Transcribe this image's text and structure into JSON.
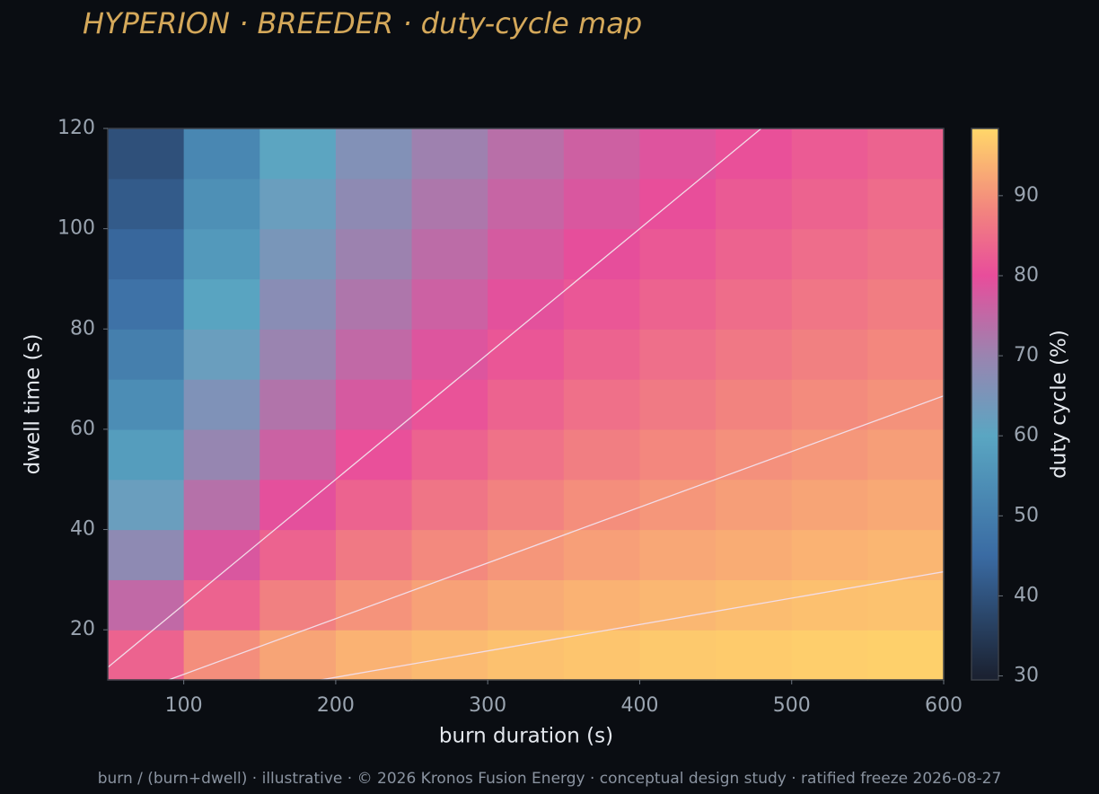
{
  "chart_data": {
    "type": "heatmap",
    "title": "HYPERION · BREEDER  ·  duty-cycle map",
    "x_label": "burn duration (s)",
    "y_label": "dwell time (s)",
    "colorbar_label": "duty cycle (%)",
    "footer": "burn / (burn+dwell) · illustrative · © 2026 Kronos Fusion Energy · conceptual design study · ratified freeze 2026-08-27",
    "x_edges": [
      50,
      100,
      150,
      200,
      250,
      300,
      350,
      400,
      450,
      500,
      550,
      600
    ],
    "y_edges": [
      10,
      20,
      30,
      40,
      50,
      60,
      70,
      80,
      90,
      100,
      110,
      120
    ],
    "z": [
      [
        83.3,
        89.3,
        92.1,
        93.8,
        94.8,
        95.6,
        96.2,
        96.6,
        96.9,
        97.2,
        97.5
      ],
      [
        75.0,
        83.3,
        87.5,
        90.0,
        91.7,
        92.9,
        93.8,
        94.4,
        95.0,
        95.5,
        95.8
      ],
      [
        68.2,
        78.1,
        83.3,
        86.5,
        88.7,
        90.3,
        91.5,
        92.4,
        93.1,
        93.8,
        94.3
      ],
      [
        62.5,
        73.5,
        79.5,
        83.3,
        85.9,
        87.8,
        89.3,
        90.4,
        91.3,
        92.1,
        92.7
      ],
      [
        57.7,
        69.4,
        76.1,
        80.4,
        83.3,
        85.5,
        87.2,
        88.5,
        89.6,
        90.5,
        91.3
      ],
      [
        53.6,
        65.8,
        72.9,
        77.6,
        80.9,
        83.3,
        85.2,
        86.7,
        88.0,
        89.0,
        89.8
      ],
      [
        50.0,
        62.5,
        70.0,
        75.0,
        78.6,
        81.3,
        83.3,
        85.0,
        86.4,
        87.5,
        88.5
      ],
      [
        46.9,
        59.5,
        67.3,
        72.6,
        76.4,
        79.3,
        81.5,
        83.3,
        84.8,
        86.1,
        87.1
      ],
      [
        44.1,
        56.8,
        64.8,
        70.3,
        74.3,
        77.4,
        79.8,
        81.7,
        83.3,
        84.7,
        85.8
      ],
      [
        41.7,
        54.3,
        62.5,
        68.2,
        72.4,
        75.6,
        78.1,
        80.2,
        81.9,
        83.3,
        84.6
      ],
      [
        39.5,
        52.1,
        60.3,
        66.2,
        70.5,
        73.9,
        76.5,
        78.7,
        80.5,
        82.0,
        83.3
      ]
    ],
    "contour_levels": [
      80,
      90,
      95
    ],
    "contour_color": "#f2dde8",
    "xlim": [
      50,
      600
    ],
    "ylim": [
      10,
      120
    ],
    "xticks": [
      100,
      200,
      300,
      400,
      500,
      600
    ],
    "yticks": [
      20,
      40,
      60,
      80,
      100,
      120
    ],
    "clim": [
      29.5,
      98.4
    ],
    "cticks": [
      30,
      40,
      50,
      60,
      70,
      80,
      90
    ],
    "colormap": [
      {
        "value": 30,
        "color": "#1b2232"
      },
      {
        "value": 45,
        "color": "#3a6ba3"
      },
      {
        "value": 60,
        "color": "#5aa6c2"
      },
      {
        "value": 70,
        "color": "#9a84b0"
      },
      {
        "value": 80,
        "color": "#e84d9b"
      },
      {
        "value": 88,
        "color": "#f2837f"
      },
      {
        "value": 98,
        "color": "#ffd46a"
      }
    ]
  }
}
